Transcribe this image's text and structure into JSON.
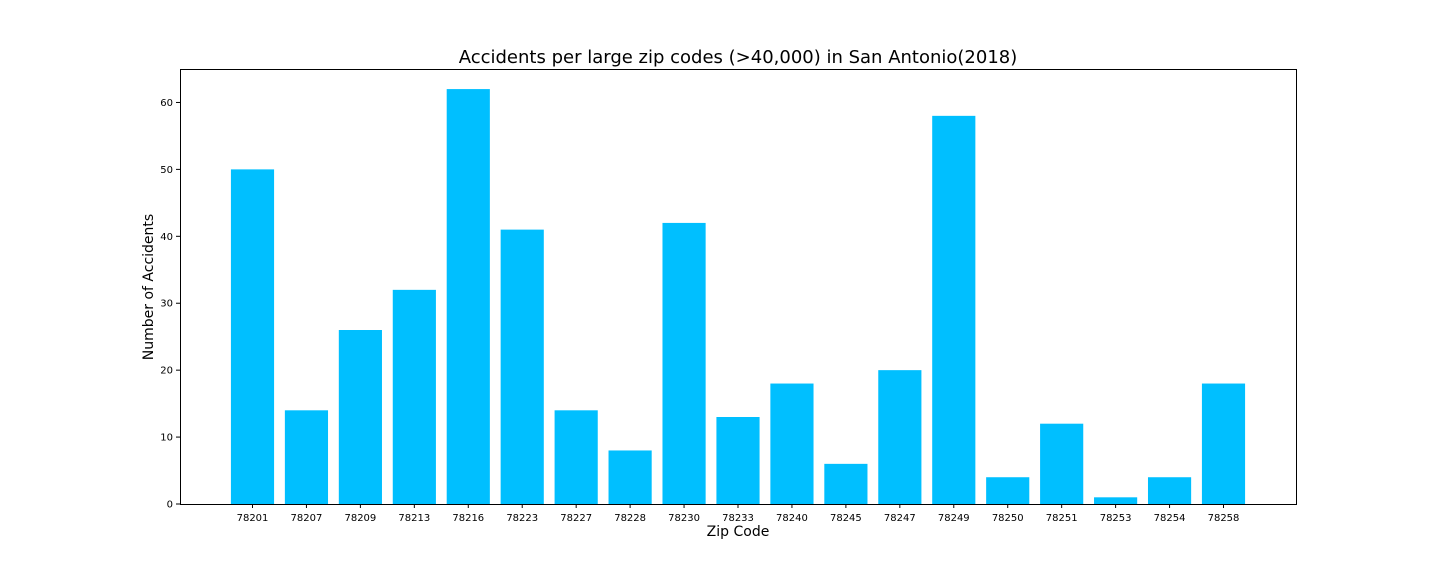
{
  "chart_data": {
    "type": "bar",
    "title": "Accidents per large zip codes (>40,000) in San Antonio(2018)",
    "xlabel": "Zip Code",
    "ylabel": "Number of Accidents",
    "categories": [
      "78201",
      "78207",
      "78209",
      "78213",
      "78216",
      "78223",
      "78227",
      "78228",
      "78230",
      "78233",
      "78240",
      "78245",
      "78247",
      "78249",
      "78250",
      "78251",
      "78253",
      "78254",
      "78258"
    ],
    "values": [
      50,
      14,
      26,
      32,
      62,
      41,
      14,
      8,
      42,
      13,
      18,
      6,
      20,
      58,
      4,
      12,
      1,
      4,
      18
    ],
    "ylim": [
      0,
      65
    ],
    "yticks": [
      0,
      10,
      20,
      30,
      40,
      50,
      60
    ],
    "grid": false,
    "bar_color": "#00bfff"
  }
}
